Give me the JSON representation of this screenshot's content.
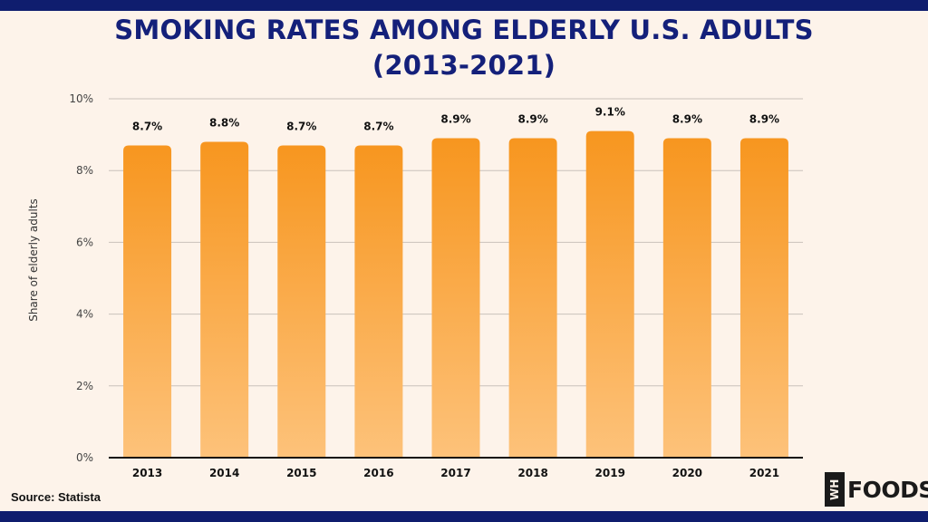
{
  "title": {
    "line1": "SMOKING RATES AMONG ELDERLY U.S. ADULTS",
    "line2": "(2013-2021)"
  },
  "source": "Source: Statista",
  "logo": {
    "badge": "WH",
    "text": "FOODS"
  },
  "colors": {
    "title": "#14207a",
    "bar_top": "#f7961f",
    "bar_bottom": "#fdc27a",
    "frame": "#0f1d6e",
    "background": "#fdf3ea"
  },
  "chart_data": {
    "type": "bar",
    "categories": [
      "2013",
      "2014",
      "2015",
      "2016",
      "2017",
      "2018",
      "2019",
      "2020",
      "2021"
    ],
    "values": [
      8.7,
      8.8,
      8.7,
      8.7,
      8.9,
      8.9,
      9.1,
      8.9,
      8.9
    ],
    "data_labels": [
      "8.7%",
      "8.8%",
      "8.7%",
      "8.7%",
      "8.9%",
      "8.9%",
      "9.1%",
      "8.9%",
      "8.9%"
    ],
    "ylabel": "Share of elderly adults",
    "xlabel": "",
    "ylim": [
      0,
      10
    ],
    "yticks": [
      0,
      2,
      4,
      6,
      8,
      10
    ],
    "ytick_labels": [
      "0%",
      "2%",
      "4%",
      "6%",
      "8%",
      "10%"
    ],
    "grid": true,
    "legend": "none"
  }
}
